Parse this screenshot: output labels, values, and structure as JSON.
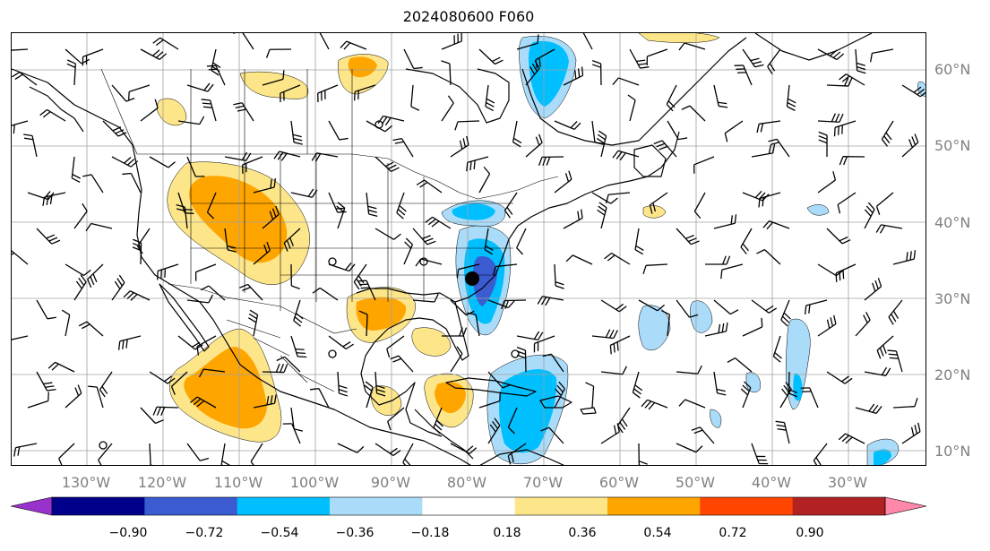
{
  "title": "2024080600 F060",
  "latitude_labels": [
    "60°N",
    "50°N",
    "40°N",
    "30°N",
    "20°N",
    "10°N"
  ],
  "longitude_labels": [
    "130°W",
    "120°W",
    "110°W",
    "100°W",
    "90°W",
    "80°W",
    "70°W",
    "60°W",
    "50°W",
    "40°W",
    "30°W"
  ],
  "colorbar": {
    "labels": [
      "−0.90",
      "−0.72",
      "−0.54",
      "−0.36",
      "−0.18",
      "0.18",
      "0.36",
      "0.54",
      "0.72",
      "0.90"
    ],
    "colors": [
      "#9932cc",
      "#00008b",
      "#3b5bd1",
      "#00bfff",
      "#aadcfa",
      "#ffffff",
      "#fde68a",
      "#ffa500",
      "#ff4500",
      "#b22222",
      "#ff88aa"
    ]
  },
  "map_colors": {
    "grid": "#a0a0a0",
    "coast": "#000000",
    "pos1": "#fde68a",
    "pos2": "#ffa500",
    "neg1": "#aadcfa",
    "neg2": "#00bfff",
    "neg3": "#3b5bd1"
  }
}
